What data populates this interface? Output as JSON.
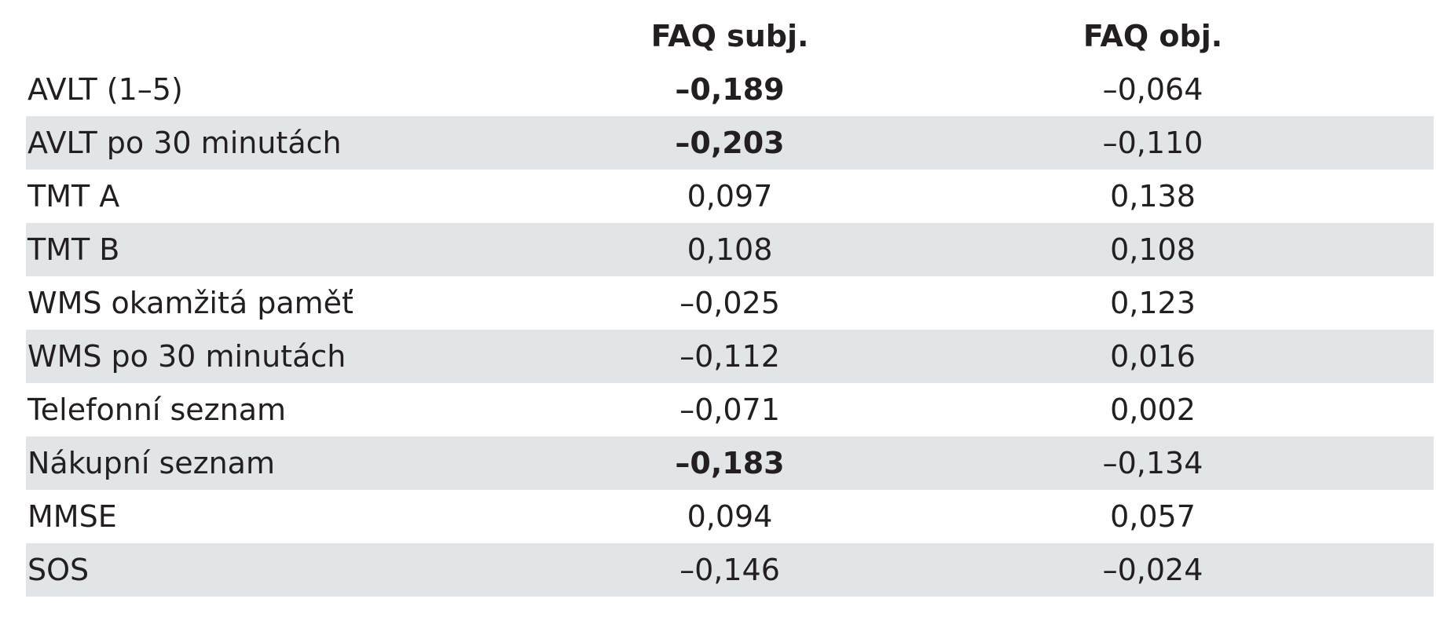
{
  "table": {
    "header": [
      "",
      "FAQ subj.",
      "FAQ obj."
    ],
    "rows": [
      {
        "label": "AVLT (1–5)",
        "cells": [
          "–0,189",
          "–0,064"
        ],
        "bold": [
          true,
          false
        ]
      },
      {
        "label": "AVLT po 30 minutách",
        "cells": [
          "–0,203",
          "–0,110"
        ],
        "bold": [
          true,
          false
        ]
      },
      {
        "label": "TMT A",
        "cells": [
          "0,097",
          "0,138"
        ],
        "bold": [
          false,
          false
        ]
      },
      {
        "label": "TMT B",
        "cells": [
          "0,108",
          "0,108"
        ],
        "bold": [
          false,
          false
        ]
      },
      {
        "label": "WMS okamžitá paměť",
        "cells": [
          "–0,025",
          "0,123"
        ],
        "bold": [
          false,
          false
        ]
      },
      {
        "label": "WMS po 30 minutách",
        "cells": [
          "–0,112",
          "0,016"
        ],
        "bold": [
          false,
          false
        ]
      },
      {
        "label": "Telefonní seznam",
        "cells": [
          "–0,071",
          "0,002"
        ],
        "bold": [
          false,
          false
        ]
      },
      {
        "label": "Nákupní seznam",
        "cells": [
          "–0,183",
          "–0,134"
        ],
        "bold": [
          true,
          false
        ]
      },
      {
        "label": "MMSE",
        "cells": [
          "0,094",
          "0,057"
        ],
        "bold": [
          false,
          false
        ]
      },
      {
        "label": "SOS",
        "cells": [
          "–0,146",
          "–0,024"
        ],
        "bold": [
          false,
          false
        ]
      }
    ],
    "stripe_color": "#e1e5e8"
  }
}
